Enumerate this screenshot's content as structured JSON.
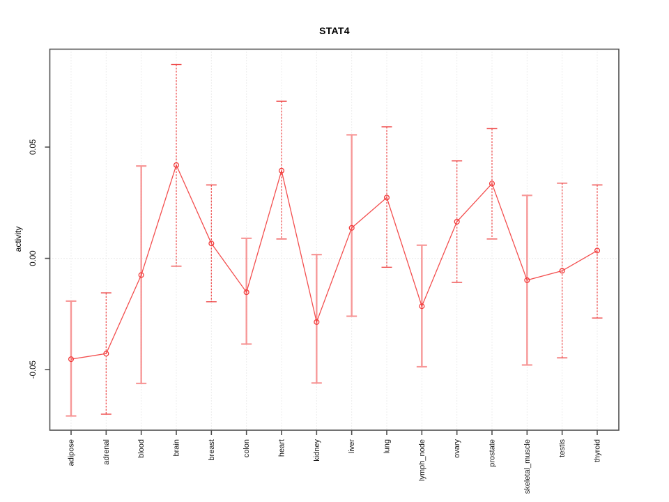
{
  "chart_data": {
    "type": "line",
    "title": "STAT4",
    "xlabel": "",
    "ylabel": "activity",
    "categories": [
      "adipose",
      "adrenal",
      "blood",
      "brain",
      "breast",
      "colon",
      "heart",
      "kidney",
      "liver",
      "lung",
      "lymph_node",
      "ovary",
      "prostate",
      "skeletal_muscle",
      "testis",
      "thyroid"
    ],
    "series": [
      {
        "name": "STAT4 activity",
        "values": [
          -0.0453,
          -0.0428,
          -0.0075,
          0.0419,
          0.0067,
          -0.0152,
          0.0394,
          -0.0286,
          0.0137,
          0.0273,
          -0.0215,
          0.0165,
          0.0336,
          -0.0098,
          -0.0056,
          0.0035
        ],
        "ci_lower": [
          -0.0708,
          -0.07,
          -0.0562,
          -0.0035,
          -0.0195,
          -0.0385,
          0.0087,
          -0.056,
          -0.026,
          -0.004,
          -0.0487,
          -0.0108,
          0.0087,
          -0.0479,
          -0.0447,
          -0.0268
        ],
        "ci_upper": [
          -0.0192,
          -0.0155,
          0.0415,
          0.0871,
          0.033,
          0.009,
          0.0706,
          0.0017,
          0.0555,
          0.0591,
          0.0059,
          0.0438,
          0.0583,
          0.0283,
          0.0338,
          0.033
        ],
        "ci_line_styles": [
          "solid",
          "dashed",
          "solid",
          "dashed",
          "dashed",
          "solid",
          "dashed",
          "solid",
          "solid",
          "dashed",
          "solid",
          "dashed",
          "dashed",
          "solid",
          "dashed",
          "dashed"
        ]
      }
    ],
    "marker": "open-circle",
    "ylim": [
      -0.0772,
      0.094
    ],
    "yticks": [
      -0.05,
      0,
      0.05
    ],
    "ytick_labels": [
      "-0.05",
      "0.00",
      "0.05"
    ],
    "grid": {
      "vertical": "dotted gridline at each category",
      "horizontal": "dotted gridline at y=0 only"
    },
    "legend": "none",
    "colors": {
      "series": "#f23b3b",
      "ci_solid": "#f79292",
      "ci_dashed": "#ee4343",
      "grid": "#d9d9d9",
      "frame": "#4f4f4f",
      "title_text": "#000000",
      "tick_text": "#1a1a1a"
    }
  }
}
